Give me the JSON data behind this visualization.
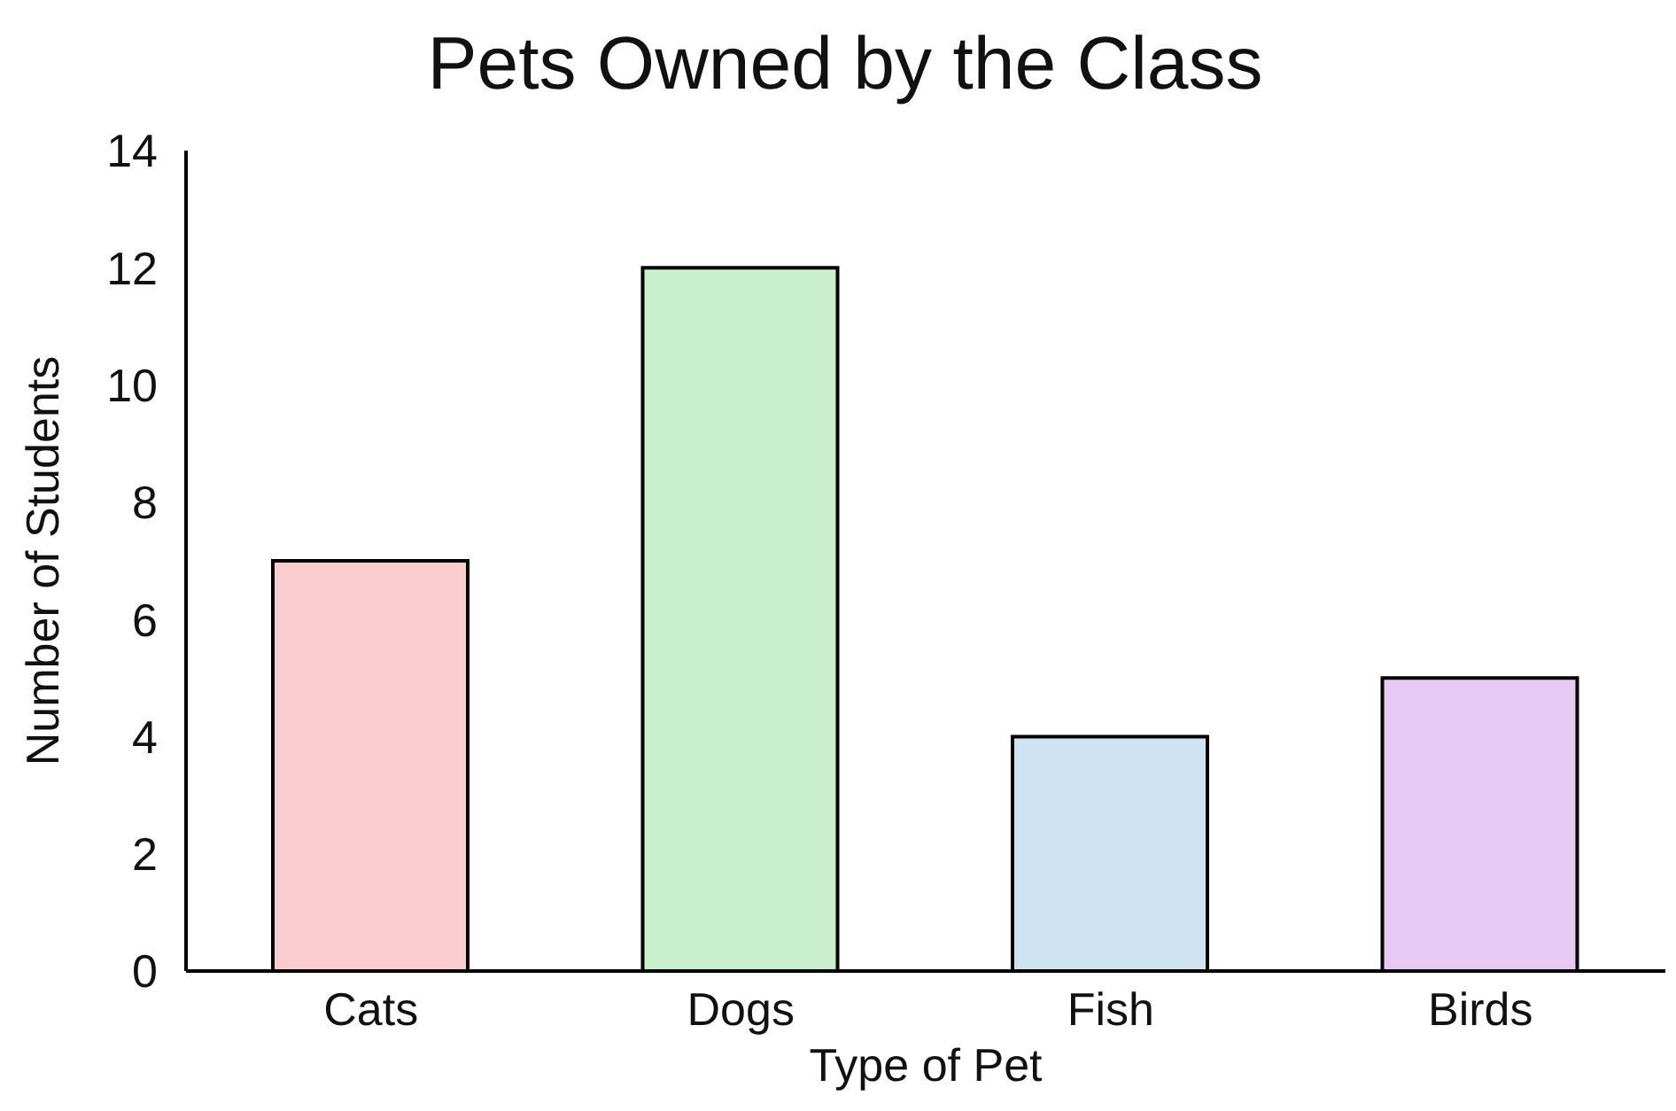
{
  "chart_data": {
    "type": "bar",
    "title": "Pets Owned by the Class",
    "xlabel": "Type of Pet",
    "ylabel": "Number of Students",
    "categories": [
      "Cats",
      "Dogs",
      "Fish",
      "Birds"
    ],
    "values": [
      7,
      12,
      4,
      5
    ],
    "colors": [
      "#f9cdcf",
      "#c9efcb",
      "#cfe4f3",
      "#e7c9f4"
    ],
    "ylim": [
      0,
      14
    ],
    "yticks": [
      0,
      2,
      4,
      6,
      8,
      10,
      12,
      14
    ],
    "grid": false,
    "legend": false
  }
}
